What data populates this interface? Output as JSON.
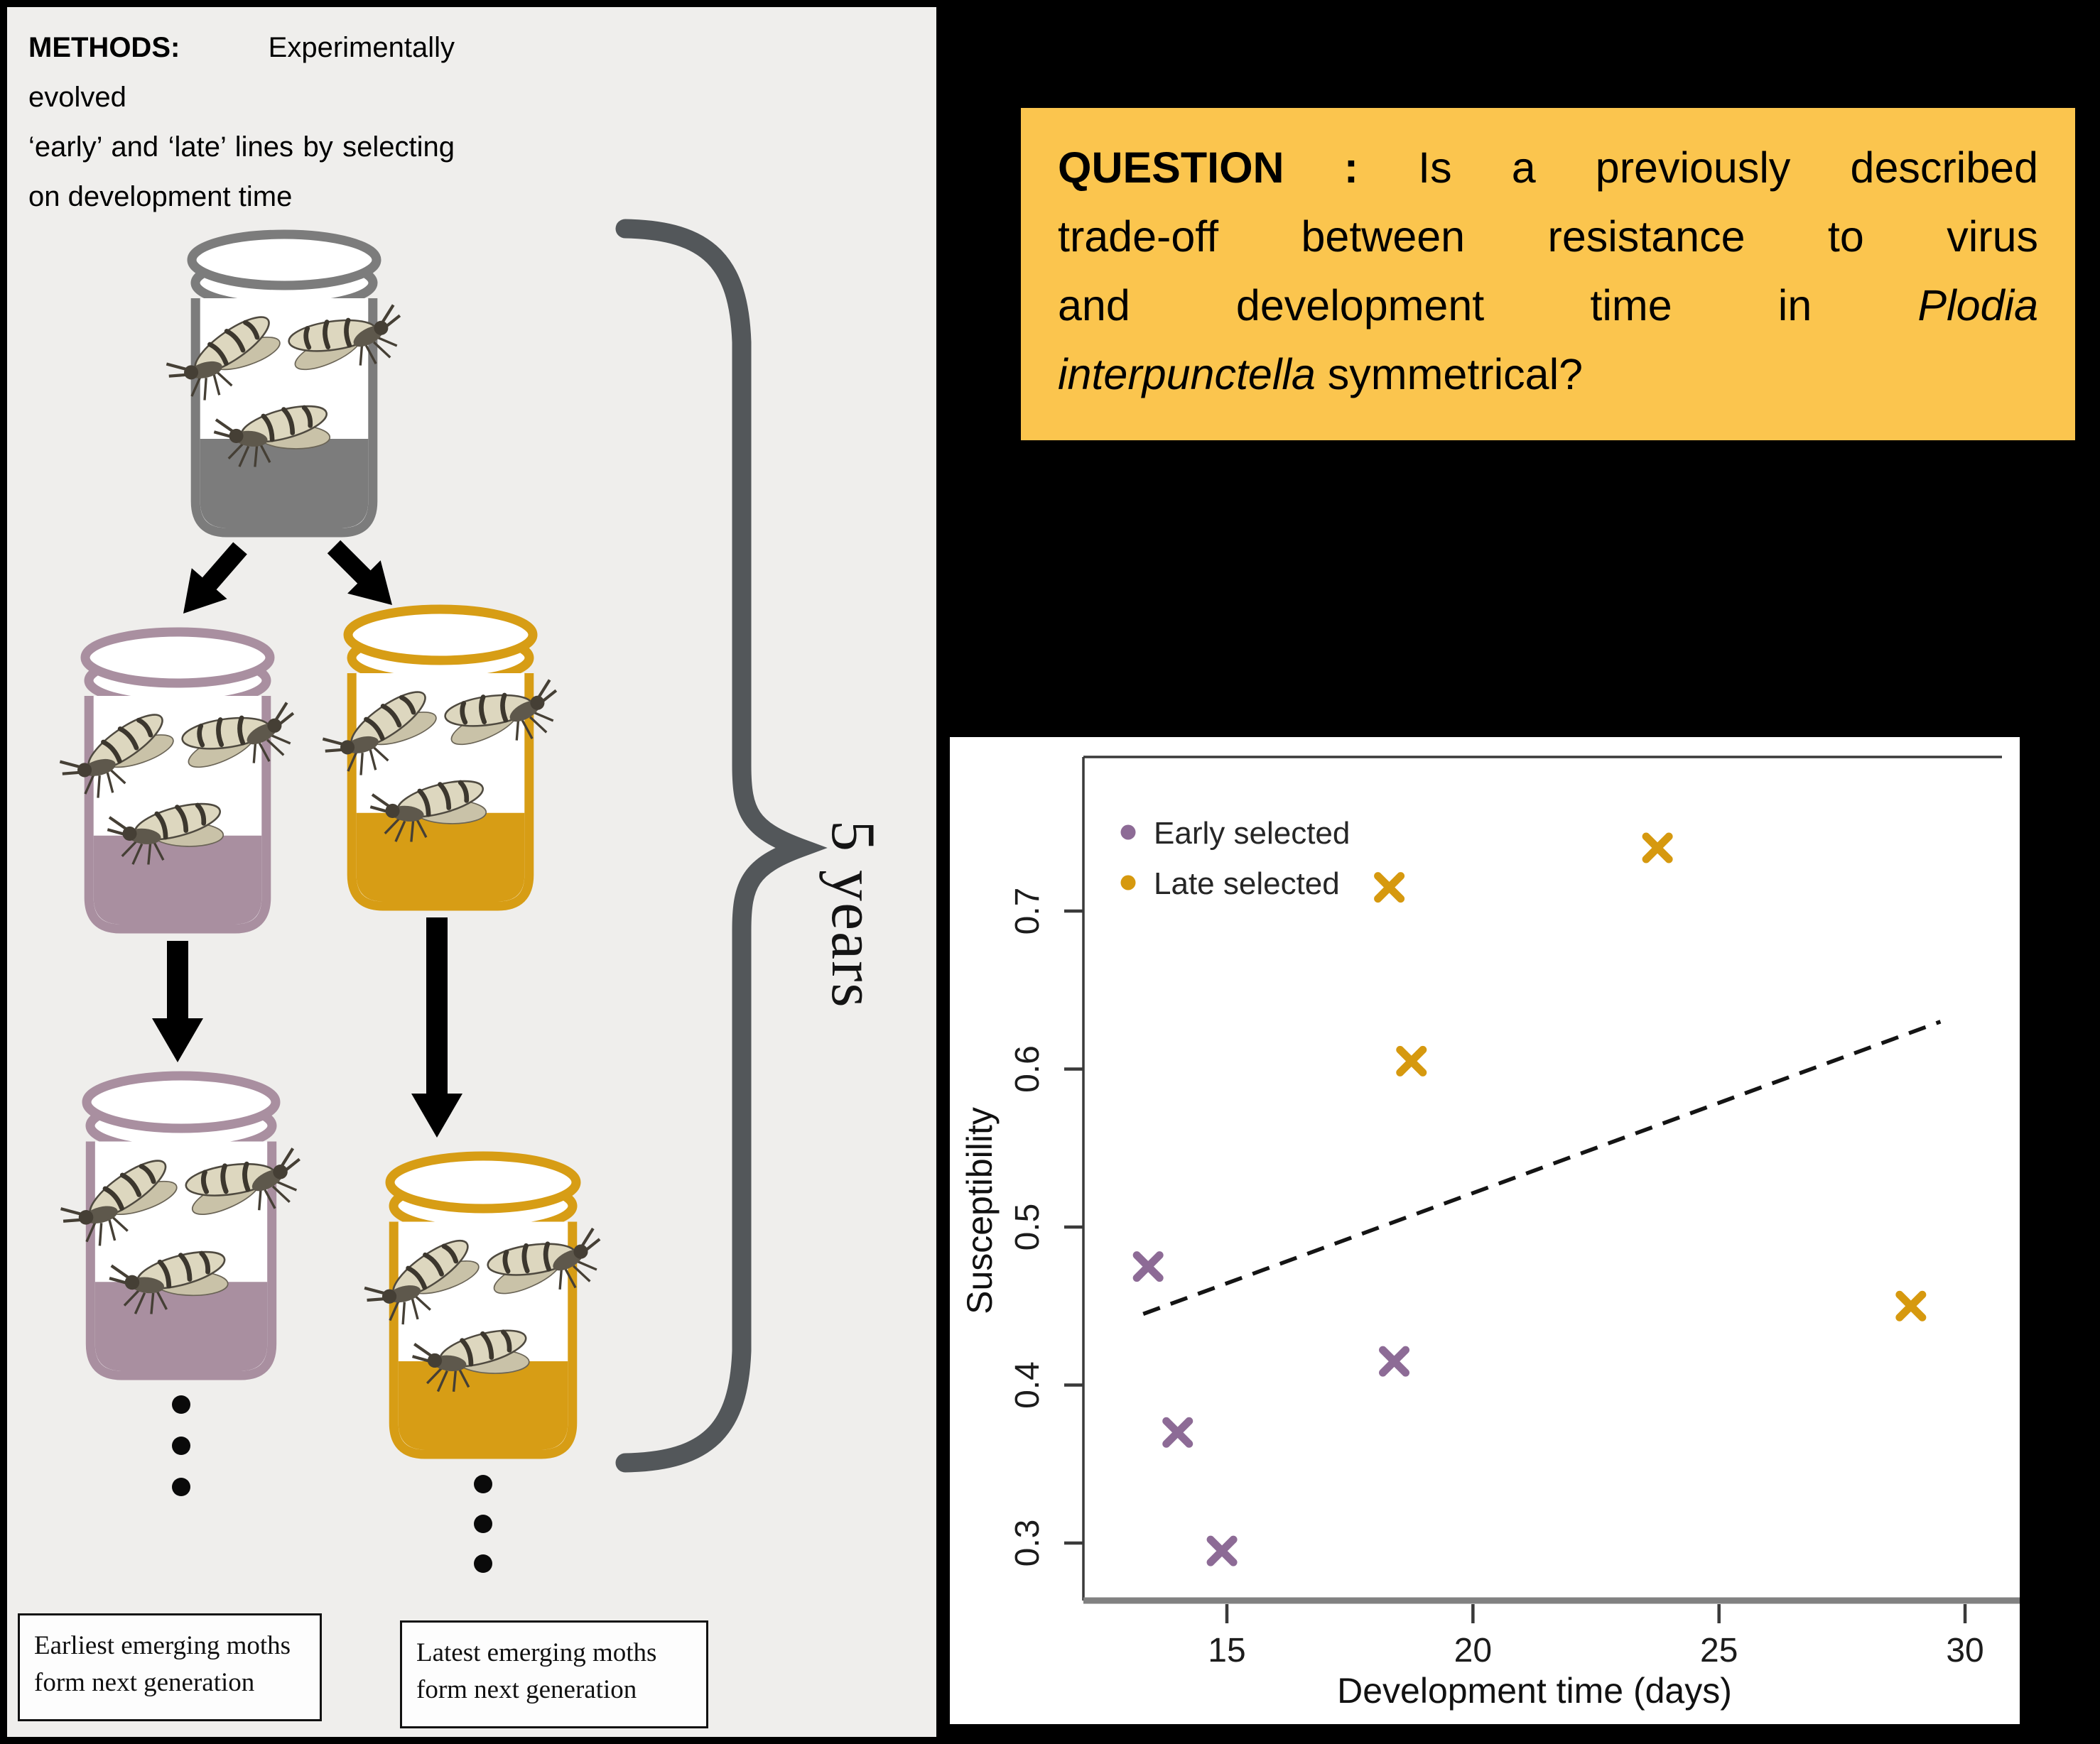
{
  "colors": {
    "panel_bg": "#efeeec",
    "question_bg": "#fbc54e",
    "early_purple": "#8d6b96",
    "late_orange": "#d6990f",
    "jar_gray": "#7c7c7c",
    "jar_purple": "#a98fa0",
    "jar_orange": "#d79d15",
    "brace_gray": "#53575a",
    "arrow_black": "#000000",
    "axis_dark": "#3a3a3a",
    "axis_baseline_gray": "#818181"
  },
  "icons": {
    "moth": "moth-icon",
    "arrow": "arrow-icon",
    "brace": "curly-brace-icon",
    "dots": "vertical-ellipsis-icon"
  },
  "methods": {
    "l1_bold": "METHODS:",
    "l1_rest": " Experimentally evolved",
    "l2": "‘early’ and ‘late’ lines by selecting",
    "l3": "on development time"
  },
  "question": {
    "heading": "QUESTION : ",
    "l1_rest": "Is a previously described",
    "l2": "trade-off between resistance to virus",
    "l3_pre": "and development time in ",
    "l3_italic": "Plodia",
    "l4_italic": "interpunctella",
    "l4_post": " symmetrical?"
  },
  "diagram": {
    "brace_label": "5 years",
    "caption_early_l1": "Earliest emerging moths",
    "caption_early_l2": "form next generation",
    "caption_late_l1": "Latest emerging moths",
    "caption_late_l2": "form next generation",
    "jars": [
      {
        "id": "ancestral-jar",
        "color_key": "jar_gray"
      },
      {
        "id": "early-line-jar-gen1",
        "color_key": "jar_purple"
      },
      {
        "id": "late-line-jar-gen1",
        "color_key": "jar_orange"
      },
      {
        "id": "early-line-jar-gen2",
        "color_key": "jar_purple"
      },
      {
        "id": "late-line-jar-gen2",
        "color_key": "jar_orange"
      }
    ]
  },
  "chart_data": {
    "type": "scatter",
    "title": "",
    "xlabel": "Development time (days)",
    "ylabel": "Susceptibility",
    "xlim": [
      12.1,
      31.1
    ],
    "ylim": [
      0.26,
      0.8
    ],
    "x_ticks": [
      15,
      20,
      25,
      30
    ],
    "y_ticks": [
      0.3,
      0.4,
      0.5,
      0.6,
      0.7
    ],
    "grid": false,
    "legend_position": "top-left",
    "series": [
      {
        "name": "Early selected",
        "marker": "x",
        "color": "#8d6b96",
        "points": [
          [
            13.4,
            0.475
          ],
          [
            14.0,
            0.37
          ],
          [
            14.9,
            0.295
          ],
          [
            18.4,
            0.415
          ]
        ]
      },
      {
        "name": "Late selected",
        "marker": "x",
        "color": "#d6990f",
        "points": [
          [
            18.3,
            0.715
          ],
          [
            18.75,
            0.605
          ],
          [
            23.75,
            0.74
          ],
          [
            28.9,
            0.45
          ]
        ]
      }
    ],
    "trendline": {
      "style": "dashed",
      "color": "#141414",
      "from": [
        13.3,
        0.445
      ],
      "to": [
        29.5,
        0.63
      ]
    }
  }
}
